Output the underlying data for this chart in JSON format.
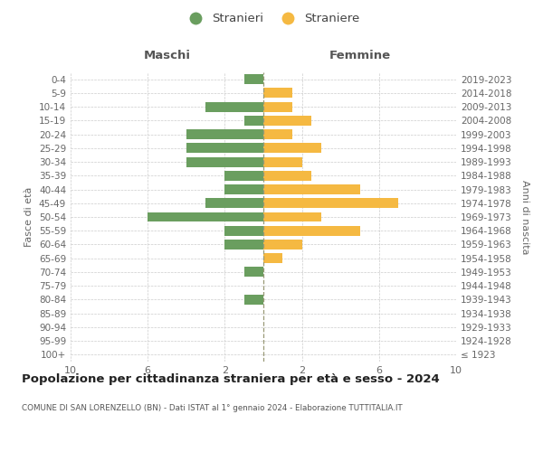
{
  "age_groups": [
    "100+",
    "95-99",
    "90-94",
    "85-89",
    "80-84",
    "75-79",
    "70-74",
    "65-69",
    "60-64",
    "55-59",
    "50-54",
    "45-49",
    "40-44",
    "35-39",
    "30-34",
    "25-29",
    "20-24",
    "15-19",
    "10-14",
    "5-9",
    "0-4"
  ],
  "birth_years": [
    "≤ 1923",
    "1924-1928",
    "1929-1933",
    "1934-1938",
    "1939-1943",
    "1944-1948",
    "1949-1953",
    "1954-1958",
    "1959-1963",
    "1964-1968",
    "1969-1973",
    "1974-1978",
    "1979-1983",
    "1984-1988",
    "1989-1993",
    "1994-1998",
    "1999-2003",
    "2004-2008",
    "2009-2013",
    "2014-2018",
    "2019-2023"
  ],
  "maschi": [
    0,
    0,
    0,
    0,
    1,
    0,
    1,
    0,
    2,
    2,
    6,
    3,
    2,
    2,
    4,
    4,
    4,
    1,
    3,
    0,
    1
  ],
  "femmine": [
    0,
    0,
    0,
    0,
    0,
    0,
    0,
    1,
    2,
    5,
    3,
    7,
    5,
    2.5,
    2,
    3,
    1.5,
    2.5,
    1.5,
    1.5,
    0
  ],
  "maschi_color": "#6a9e5f",
  "femmine_color": "#f5b942",
  "title": "Popolazione per cittadinanza straniera per età e sesso - 2024",
  "subtitle": "COMUNE DI SAN LORENZELLO (BN) - Dati ISTAT al 1° gennaio 2024 - Elaborazione TUTTITALIA.IT",
  "xlabel_left": "Maschi",
  "xlabel_right": "Femmine",
  "ylabel_left": "Fasce di età",
  "ylabel_right": "Anni di nascita",
  "legend_stranieri": "Stranieri",
  "legend_straniere": "Straniere",
  "xlim": 10,
  "background_color": "#ffffff",
  "grid_color": "#cccccc"
}
